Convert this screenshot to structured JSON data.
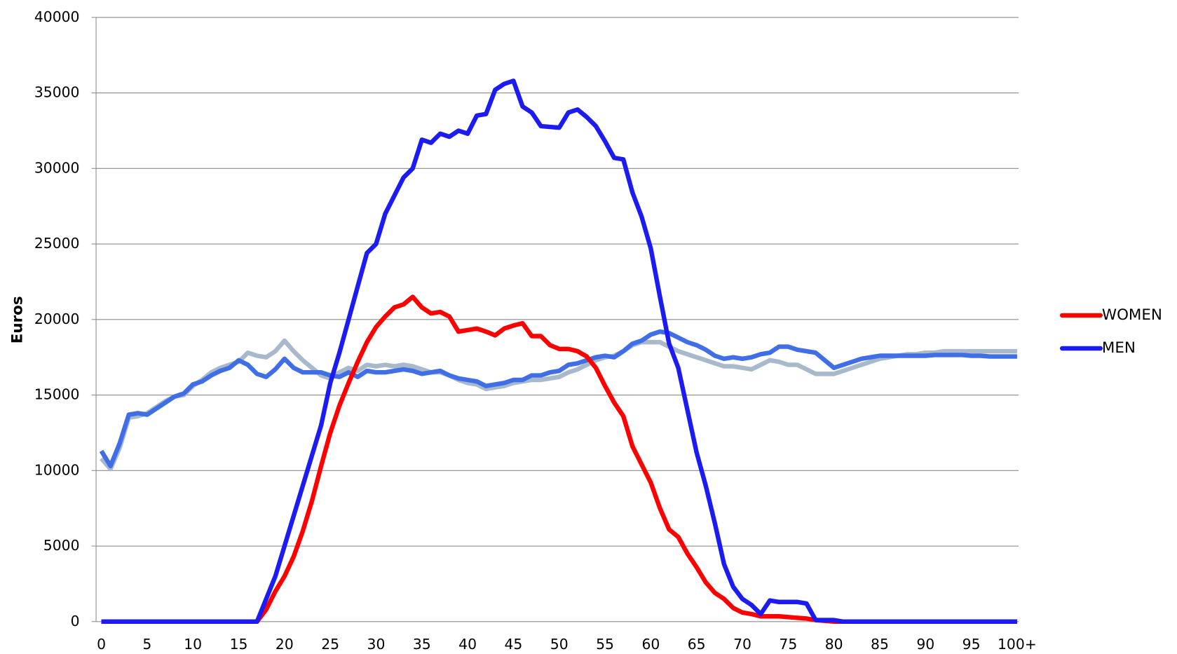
{
  "chart_data": {
    "type": "line",
    "y_label": "Euros",
    "categories": [
      "0",
      null,
      null,
      null,
      null,
      "5",
      null,
      null,
      null,
      null,
      "10",
      null,
      null,
      null,
      null,
      "15",
      null,
      null,
      null,
      null,
      "20",
      null,
      null,
      null,
      null,
      "25",
      null,
      null,
      null,
      null,
      "30",
      null,
      null,
      null,
      null,
      "35",
      null,
      null,
      null,
      null,
      "40",
      null,
      null,
      null,
      null,
      "45",
      null,
      null,
      null,
      null,
      "50",
      null,
      null,
      null,
      null,
      "55",
      null,
      null,
      null,
      null,
      "60",
      null,
      null,
      null,
      null,
      "65",
      null,
      null,
      null,
      null,
      "70",
      null,
      null,
      null,
      null,
      "75",
      null,
      null,
      null,
      null,
      "80",
      null,
      null,
      null,
      null,
      "85",
      null,
      null,
      null,
      null,
      "90",
      null,
      null,
      null,
      null,
      "95",
      null,
      null,
      null,
      null,
      "100+"
    ],
    "ylim": [
      0,
      40000
    ],
    "yticks": [
      0,
      5000,
      10000,
      15000,
      20000,
      25000,
      30000,
      35000,
      40000
    ],
    "grid": true,
    "legend": "right",
    "series": [
      {
        "color": "#a9b9cc",
        "values": [
          10800,
          10100,
          11500,
          13500,
          13600,
          13800,
          14200,
          14600,
          14900,
          15000,
          15600,
          16000,
          16500,
          16800,
          17000,
          17200,
          17800,
          17600,
          17500,
          17900,
          18600,
          17900,
          17300,
          16800,
          16300,
          16100,
          16500,
          16800,
          16600,
          17000,
          16900,
          17000,
          16900,
          17000,
          16900,
          16700,
          16500,
          16500,
          16300,
          16000,
          15800,
          15700,
          15400,
          15500,
          15600,
          15800,
          15900,
          16000,
          16000,
          16100,
          16200,
          16500,
          16700,
          17000,
          17300,
          17500,
          17600,
          17900,
          18300,
          18500,
          18500,
          18500,
          18200,
          17900,
          17700,
          17500,
          17300,
          17100,
          16900,
          16900,
          16800,
          16700,
          17000,
          17300,
          17200,
          17000,
          17000,
          16700,
          16400,
          16400,
          16400,
          16600,
          16800,
          17000,
          17200,
          17400,
          17500,
          17600,
          17700,
          17700,
          17800,
          17800,
          17900,
          17900,
          17900,
          17900,
          17900,
          17900,
          17900,
          17900,
          17900
        ]
      },
      {
        "color": "#3f6ee6",
        "values": [
          11300,
          10300,
          11800,
          13700,
          13800,
          13700,
          14100,
          14500,
          14900,
          15100,
          15700,
          15900,
          16300,
          16600,
          16800,
          17300,
          17000,
          16400,
          16200,
          16700,
          17400,
          16800,
          16500,
          16500,
          16500,
          16300,
          16200,
          16500,
          16200,
          16600,
          16500,
          16500,
          16600,
          16700,
          16600,
          16400,
          16500,
          16600,
          16300,
          16100,
          16000,
          15900,
          15600,
          15700,
          15800,
          16000,
          16000,
          16300,
          16300,
          16500,
          16600,
          17000,
          17100,
          17300,
          17500,
          17600,
          17500,
          17900,
          18400,
          18600,
          19000,
          19200,
          19100,
          18800,
          18500,
          18300,
          18000,
          17600,
          17400,
          17500,
          17400,
          17500,
          17700,
          17800,
          18200,
          18200,
          18000,
          17900,
          17800,
          17300,
          16800,
          17000,
          17200,
          17400,
          17500,
          17600,
          17600,
          17600,
          17600,
          17600,
          17600,
          17650,
          17650,
          17650,
          17650,
          17600,
          17600,
          17550,
          17550,
          17550,
          17550
        ]
      },
      {
        "name": "WOMEN",
        "color": "#ff0000",
        "values": [
          0,
          0,
          0,
          0,
          0,
          0,
          0,
          0,
          0,
          0,
          0,
          0,
          0,
          0,
          0,
          0,
          0,
          0,
          800,
          2000,
          3000,
          4300,
          6000,
          8000,
          10300,
          12500,
          14300,
          15800,
          17200,
          18500,
          19500,
          20200,
          20800,
          21000,
          21500,
          20800,
          20400,
          20500,
          20200,
          19200,
          19300,
          19400,
          19200,
          18950,
          19400,
          19600,
          19750,
          18900,
          18900,
          18300,
          18050,
          18050,
          17900,
          17550,
          16800,
          15600,
          14500,
          13600,
          11600,
          10400,
          9200,
          7500,
          6100,
          5600,
          4500,
          3600,
          2600,
          1900,
          1500,
          900,
          600,
          500,
          350,
          350,
          350,
          300,
          250,
          200,
          100,
          50,
          0,
          0,
          0,
          0,
          0,
          0,
          0,
          0,
          0,
          0,
          0,
          0,
          0,
          0,
          0,
          0,
          0,
          0,
          0,
          0,
          0
        ]
      },
      {
        "name": "MEN",
        "color": "#1c1cf2",
        "values": [
          0,
          0,
          0,
          0,
          0,
          0,
          0,
          0,
          0,
          0,
          0,
          0,
          0,
          0,
          0,
          0,
          0,
          0,
          1500,
          3000,
          5000,
          7000,
          9000,
          11000,
          13000,
          15800,
          17800,
          20000,
          22200,
          24400,
          25000,
          27000,
          28200,
          29400,
          30000,
          31900,
          31700,
          32300,
          32100,
          32500,
          32300,
          33500,
          33600,
          35200,
          35600,
          35800,
          34100,
          33700,
          32800,
          32750,
          32700,
          33700,
          33900,
          33400,
          32800,
          31800,
          30700,
          30600,
          28400,
          26800,
          24700,
          21500,
          18400,
          16800,
          14000,
          11200,
          9000,
          6500,
          3800,
          2300,
          1500,
          1100,
          500,
          1400,
          1300,
          1300,
          1300,
          1200,
          100,
          100,
          100,
          0,
          0,
          0,
          0,
          0,
          0,
          0,
          0,
          0,
          0,
          0,
          0,
          0,
          0,
          0,
          0,
          0,
          0,
          0,
          0
        ]
      }
    ]
  }
}
